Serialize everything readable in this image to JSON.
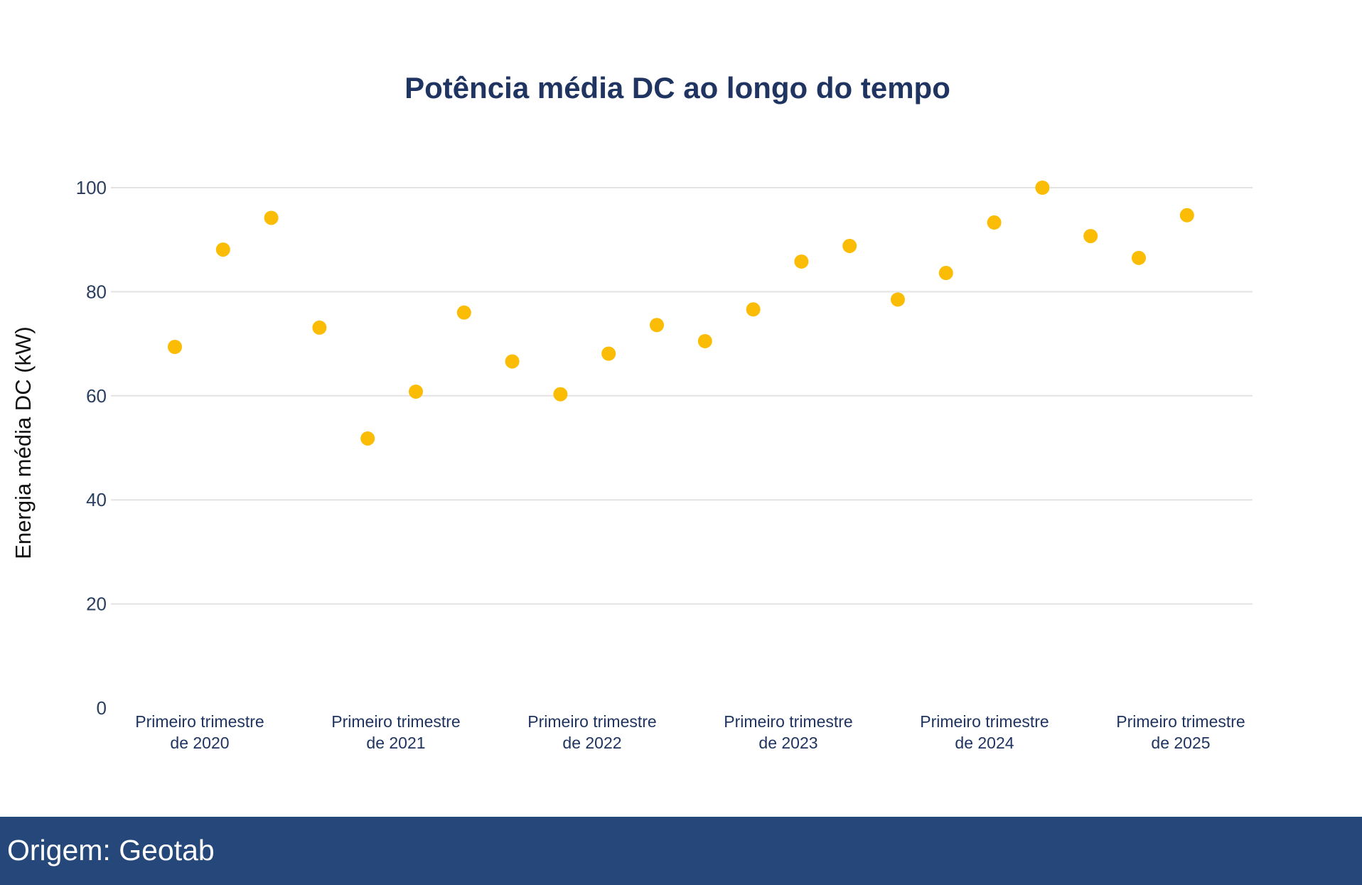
{
  "chart_data": {
    "type": "scatter",
    "title": "Potência média DC ao longo do tempo",
    "xlabel": "",
    "ylabel": "Energia média DC (kW)",
    "ylim": [
      0,
      100
    ],
    "yticks": [
      0,
      20,
      40,
      60,
      80,
      100
    ],
    "grid": true,
    "marker_color": "#fbbc05",
    "x": [
      "2020 Q1",
      "2020 Q2",
      "2020 Q3",
      "2020 Q4",
      "2021 Q1",
      "2021 Q2",
      "2021 Q3",
      "2021 Q4",
      "2022 Q1",
      "2022 Q2",
      "2022 Q3",
      "2022 Q4",
      "2023 Q1",
      "2023 Q2",
      "2023 Q3",
      "2023 Q4",
      "2024 Q1",
      "2024 Q2",
      "2024 Q3",
      "2024 Q4",
      "2025 Q1",
      "2025 Q2"
    ],
    "values": [
      69.4,
      88.1,
      94.2,
      73.1,
      51.8,
      60.8,
      76.0,
      66.6,
      60.3,
      68.1,
      73.6,
      70.5,
      76.6,
      85.8,
      88.8,
      78.5,
      83.6,
      93.3,
      100,
      90.7,
      86.5,
      94.7
    ],
    "xtick_labels": [
      [
        "Primeiro trimestre",
        "de 2020"
      ],
      [
        "Primeiro trimestre",
        "de 2021"
      ],
      [
        "Primeiro trimestre",
        "de 2022"
      ],
      [
        "Primeiro trimestre",
        "de 2023"
      ],
      [
        "Primeiro trimestre",
        "de 2024"
      ],
      [
        "Primeiro trimestre",
        "de 2025"
      ]
    ]
  },
  "footer": {
    "source": "Origem: Geotab"
  }
}
